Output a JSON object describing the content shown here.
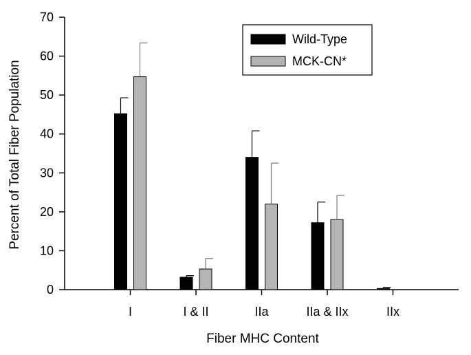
{
  "chart_data": {
    "type": "bar",
    "categories": [
      "I",
      "I & II",
      "IIa",
      "IIa & IIx",
      "IIx"
    ],
    "series": [
      {
        "name": "Wild-Type",
        "color": "#000000",
        "values": [
          45.2,
          3.2,
          34.0,
          17.2,
          0.3
        ],
        "errors": [
          4.1,
          0.4,
          6.8,
          5.3,
          0.3
        ]
      },
      {
        "name": "MCK-CN*",
        "color": "#b4b4b4",
        "values": [
          54.7,
          5.3,
          22.0,
          18.0,
          0
        ],
        "errors": [
          8.7,
          2.7,
          10.5,
          6.2,
          0
        ]
      }
    ],
    "xlabel": "Fiber MHC Content",
    "ylabel": "Percent of Total Fiber Population",
    "ylim": [
      0,
      70
    ],
    "yticks": [
      0,
      10,
      20,
      30,
      40,
      50,
      60,
      70
    ],
    "grid": false,
    "legend": "top-right",
    "error_bars": "upper"
  }
}
